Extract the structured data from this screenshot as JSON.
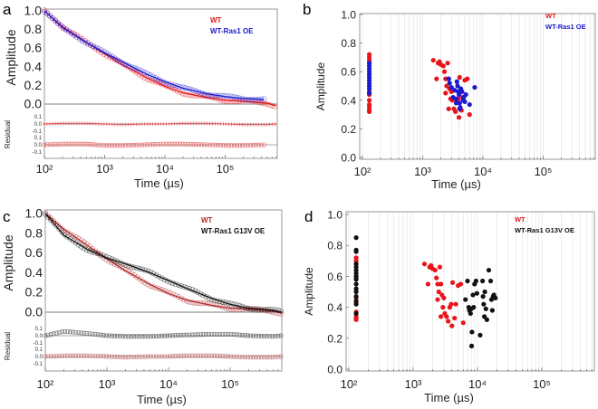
{
  "colors": {
    "wt": "#e8141a",
    "wt_dark": "#b0282a",
    "ras1": "#1a1ad0",
    "g13v": "#111111",
    "axis": "#999999",
    "grid": "#e4e4e4"
  },
  "chart_data": [
    {
      "panel": "a",
      "type": "line",
      "xscale": "log",
      "xlabel": "Time (µs)",
      "ylabel": "Amplitude",
      "residual_label": "Residual",
      "xlim": [
        100,
        700000
      ],
      "ylim": [
        0,
        1
      ],
      "x_ticks": [
        100,
        1000,
        10000,
        100000
      ],
      "x_tick_labels": [
        "10²",
        "10³",
        "10⁴",
        "10⁵"
      ],
      "y_tick_labels": [
        "0.0",
        "0.2",
        "0.4",
        "0.6",
        "0.8",
        "1.0"
      ],
      "residual_tick_labels": [
        "0.1",
        "0.0",
        "-0.1"
      ],
      "legend": "top-right",
      "series": [
        {
          "name": "WT",
          "color": "#e8141a",
          "x": [
            100,
            200,
            500,
            1000,
            2000,
            5000,
            10000,
            20000,
            50000,
            100000,
            200000,
            500000,
            700000
          ],
          "y": [
            1.0,
            0.83,
            0.66,
            0.54,
            0.42,
            0.28,
            0.19,
            0.12,
            0.07,
            0.04,
            0.03,
            0.01,
            -0.02
          ],
          "residual": [
            0.0,
            0.01,
            0.01,
            0.0,
            -0.01,
            0.0,
            0.0,
            0.01,
            0.01,
            0.0,
            -0.01,
            -0.01,
            0.0
          ]
        },
        {
          "name": "WT-Ras1 OE",
          "color": "#1a1ad0",
          "x": [
            100,
            200,
            500,
            1000,
            2000,
            5000,
            10000,
            20000,
            50000,
            100000,
            200000,
            450000
          ],
          "y": [
            1.0,
            0.82,
            0.66,
            0.55,
            0.45,
            0.32,
            0.24,
            0.17,
            0.11,
            0.08,
            0.06,
            0.05
          ],
          "residual": [
            0.0,
            0.01,
            0.01,
            -0.01,
            -0.01,
            0.0,
            0.01,
            0.01,
            0.0,
            -0.01,
            -0.01,
            0.0
          ]
        }
      ]
    },
    {
      "panel": "b",
      "type": "scatter",
      "xscale": "log",
      "xlabel": "Time (µs)",
      "ylabel": "Amplitude",
      "xlim": [
        100,
        700000
      ],
      "ylim": [
        0,
        1
      ],
      "x_tick_labels": [
        "10²",
        "10³",
        "10⁴",
        "10⁵"
      ],
      "y_tick_labels": [
        "0.0",
        "0.2",
        "0.4",
        "0.6",
        "0.8",
        "1.0"
      ],
      "grid": "vertical minor",
      "legend": "top-right",
      "series": [
        {
          "name": "WT",
          "color": "#e8141a",
          "x": [
            130,
            130,
            130,
            130,
            130,
            130,
            130,
            130,
            130,
            130,
            130,
            130,
            130,
            130,
            1500,
            1700,
            1800,
            1900,
            2000,
            2200,
            2300,
            2400,
            2500,
            2400,
            2600,
            2700,
            2800,
            2900,
            3000,
            3100,
            3300,
            3500,
            3700,
            3900,
            4000,
            4100,
            4400,
            4600,
            5000,
            5500,
            6000,
            2700
          ],
          "y": [
            0.72,
            0.7,
            0.68,
            0.66,
            0.62,
            0.58,
            0.5,
            0.46,
            0.44,
            0.4,
            0.37,
            0.35,
            0.33,
            0.32,
            0.68,
            0.55,
            0.66,
            0.67,
            0.65,
            0.64,
            0.6,
            0.55,
            0.5,
            0.45,
            0.66,
            0.55,
            0.48,
            0.41,
            0.46,
            0.4,
            0.34,
            0.32,
            0.39,
            0.41,
            0.28,
            0.56,
            0.33,
            0.42,
            0.54,
            0.55,
            0.3,
            0.34
          ]
        },
        {
          "name": "WT-Ras1 OE",
          "color": "#1a1ad0",
          "x": [
            130,
            130,
            130,
            130,
            130,
            130,
            130,
            130,
            130,
            130,
            130,
            2700,
            2800,
            3000,
            3200,
            3400,
            3600,
            3700,
            3800,
            3900,
            4000,
            4100,
            4200,
            4300,
            4500,
            4700,
            4800,
            5000,
            5200,
            6000,
            7300,
            4100,
            3600
          ],
          "y": [
            0.66,
            0.64,
            0.62,
            0.6,
            0.58,
            0.56,
            0.54,
            0.52,
            0.5,
            0.48,
            0.45,
            0.55,
            0.52,
            0.49,
            0.42,
            0.47,
            0.41,
            0.53,
            0.5,
            0.46,
            0.44,
            0.38,
            0.35,
            0.48,
            0.46,
            0.4,
            0.42,
            0.39,
            0.44,
            0.37,
            0.49,
            0.34,
            0.38
          ]
        }
      ]
    },
    {
      "panel": "c",
      "type": "line",
      "xscale": "log",
      "xlabel": "Time (µs)",
      "ylabel": "Amplitude",
      "residual_label": "Residual",
      "xlim": [
        100,
        700000
      ],
      "ylim": [
        0,
        1
      ],
      "x_tick_labels": [
        "10²",
        "10³",
        "10⁴",
        "10⁵"
      ],
      "y_tick_labels": [
        "0.0",
        "0.2",
        "0.4",
        "0.6",
        "0.8",
        "1.0"
      ],
      "residual_tick_labels": [
        "0.1",
        "0.0",
        "-0.1"
      ],
      "legend": "top-right",
      "series": [
        {
          "name": "WT",
          "color": "#b0282a",
          "x": [
            100,
            200,
            500,
            1000,
            2000,
            5000,
            10000,
            20000,
            50000,
            100000,
            200000,
            500000,
            700000
          ],
          "y": [
            1.0,
            0.84,
            0.67,
            0.54,
            0.42,
            0.28,
            0.19,
            0.12,
            0.07,
            0.04,
            0.03,
            0.01,
            -0.01
          ],
          "residual": [
            0.0,
            0.01,
            0.01,
            0.0,
            -0.01,
            0.0,
            0.0,
            0.01,
            0.01,
            0.0,
            -0.01,
            -0.01,
            0.0
          ]
        },
        {
          "name": "WT-Ras1 G13V OE",
          "color": "#111111",
          "x": [
            100,
            200,
            500,
            1000,
            2000,
            5000,
            10000,
            20000,
            50000,
            100000,
            200000,
            500000,
            700000
          ],
          "y": [
            1.0,
            0.78,
            0.63,
            0.55,
            0.49,
            0.4,
            0.32,
            0.24,
            0.14,
            0.08,
            0.04,
            0.02,
            0.0
          ],
          "residual": [
            0.0,
            0.06,
            0.03,
            0.0,
            -0.01,
            -0.01,
            0.0,
            0.01,
            0.02,
            0.02,
            0.0,
            -0.01,
            0.0
          ]
        }
      ]
    },
    {
      "panel": "d",
      "type": "scatter",
      "xscale": "log",
      "xlabel": "Time (µs)",
      "ylabel": "Amplitude",
      "xlim": [
        100,
        700000
      ],
      "ylim": [
        0,
        1
      ],
      "x_tick_labels": [
        "10²",
        "10³",
        "10⁴",
        "10⁵"
      ],
      "y_tick_labels": [
        "0.0",
        "0.2",
        "0.4",
        "0.6",
        "0.8",
        "1.0"
      ],
      "grid": "vertical minor",
      "legend": "top-right",
      "series": [
        {
          "name": "WT",
          "color": "#e8141a",
          "x": [
            130,
            130,
            130,
            130,
            130,
            130,
            130,
            130,
            130,
            130,
            1500,
            1700,
            1800,
            1900,
            2000,
            2200,
            2300,
            2400,
            2500,
            2400,
            2600,
            2700,
            2800,
            2900,
            3000,
            3100,
            3300,
            3500,
            3700,
            3900,
            4000,
            4100,
            4400,
            4600,
            5000,
            5500,
            6000,
            2700
          ],
          "y": [
            0.72,
            0.7,
            0.68,
            0.59,
            0.46,
            0.43,
            0.37,
            0.34,
            0.33,
            0.32,
            0.68,
            0.55,
            0.66,
            0.67,
            0.65,
            0.64,
            0.59,
            0.55,
            0.5,
            0.45,
            0.66,
            0.55,
            0.48,
            0.4,
            0.46,
            0.36,
            0.34,
            0.31,
            0.4,
            0.42,
            0.28,
            0.56,
            0.33,
            0.42,
            0.54,
            0.55,
            0.3,
            0.34
          ]
        },
        {
          "name": "WT-Ras1 G13V OE",
          "color": "#111111",
          "x": [
            130,
            130,
            130,
            130,
            130,
            130,
            130,
            130,
            130,
            130,
            130,
            130,
            130,
            130,
            130,
            130,
            6500,
            7000,
            7300,
            7500,
            7800,
            8000,
            8200,
            8100,
            8500,
            8700,
            9000,
            9500,
            9800,
            11000,
            12000,
            12200,
            12500,
            12800,
            13000,
            13500,
            14000,
            15000,
            16000,
            16500,
            17000,
            17500,
            18000,
            19000
          ],
          "y": [
            0.85,
            0.77,
            0.76,
            0.68,
            0.66,
            0.64,
            0.62,
            0.6,
            0.58,
            0.55,
            0.52,
            0.5,
            0.47,
            0.44,
            0.42,
            0.36,
            0.45,
            0.57,
            0.4,
            0.38,
            0.36,
            0.39,
            0.24,
            0.15,
            0.48,
            0.4,
            0.55,
            0.57,
            0.49,
            0.22,
            0.57,
            0.47,
            0.42,
            0.34,
            0.5,
            0.39,
            0.32,
            0.64,
            0.57,
            0.45,
            0.38,
            0.47,
            0.48,
            0.46
          ]
        }
      ]
    }
  ]
}
